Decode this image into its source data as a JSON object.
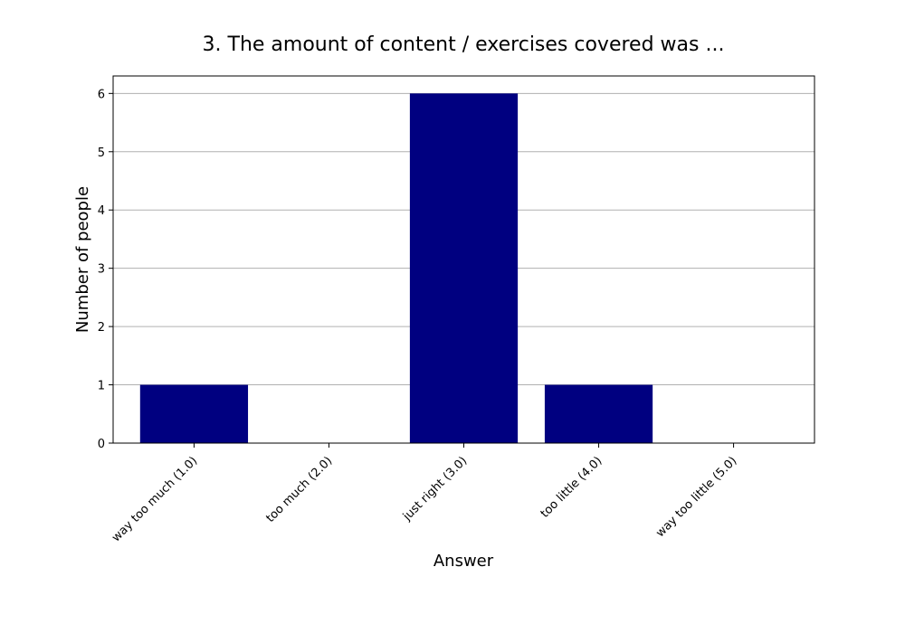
{
  "chart_data": {
    "type": "bar",
    "title": "3. The amount of content / exercises covered was ...",
    "xlabel": "Answer",
    "ylabel": "Number of people",
    "categories": [
      "way too much (1.0)",
      "too much (2.0)",
      "just right (3.0)",
      "too little (4.0)",
      "way too little (5.0)"
    ],
    "values": [
      1,
      0,
      6,
      1,
      0
    ],
    "ylim": [
      0,
      6.3
    ],
    "yticks": [
      0,
      1,
      2,
      3,
      4,
      5,
      6
    ],
    "grid": "y",
    "legend": "none",
    "bar_color": "#000080"
  }
}
